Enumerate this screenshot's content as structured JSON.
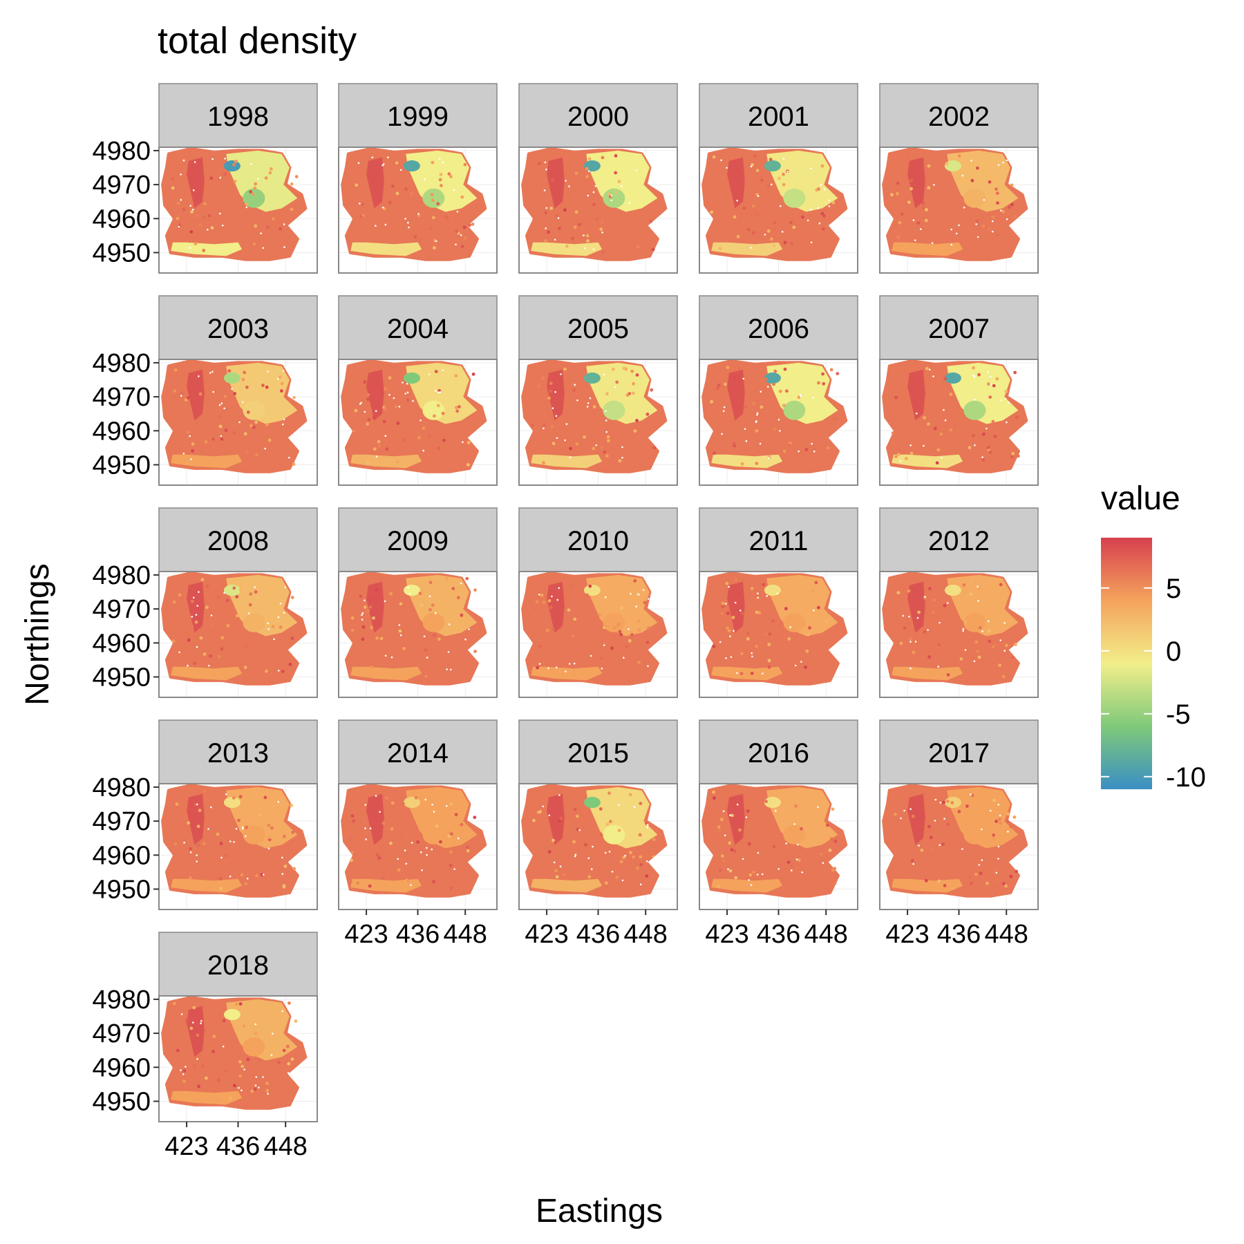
{
  "chart_data": {
    "type": "heatmap",
    "title": "total density",
    "xlabel": "Eastings",
    "ylabel": "Northings",
    "facets": [
      "1998",
      "1999",
      "2000",
      "2001",
      "2002",
      "2003",
      "2004",
      "2005",
      "2006",
      "2007",
      "2008",
      "2009",
      "2010",
      "2011",
      "2012",
      "2013",
      "2014",
      "2015",
      "2016",
      "2017",
      "2018"
    ],
    "facet_columns": 5,
    "x_ticks": [
      423,
      436,
      448
    ],
    "y_ticks": [
      4950,
      4960,
      4970,
      4980
    ],
    "xlim": [
      416,
      456
    ],
    "ylim": [
      4944,
      4981
    ],
    "grid": true,
    "legend": {
      "title": "value",
      "position": "right",
      "ticks": [
        5,
        0,
        -5,
        -10
      ],
      "range": [
        -11,
        9
      ],
      "colors": [
        "#3a8fc4",
        "#7fc97a",
        "#f2ee8a",
        "#f5a35c",
        "#d6404e"
      ]
    },
    "low_region_minimum_by_facet": {
      "1998": -10,
      "1999": -9,
      "2000": -9,
      "2001": -8,
      "2002": -2,
      "2003": -4,
      "2004": -6,
      "2005": -8,
      "2006": -9,
      "2007": -9,
      "2008": -2,
      "2009": -1,
      "2010": 0,
      "2011": 0,
      "2012": 0,
      "2013": 0,
      "2014": 1,
      "2015": -6,
      "2016": 0,
      "2017": 1,
      "2018": -1
    }
  }
}
